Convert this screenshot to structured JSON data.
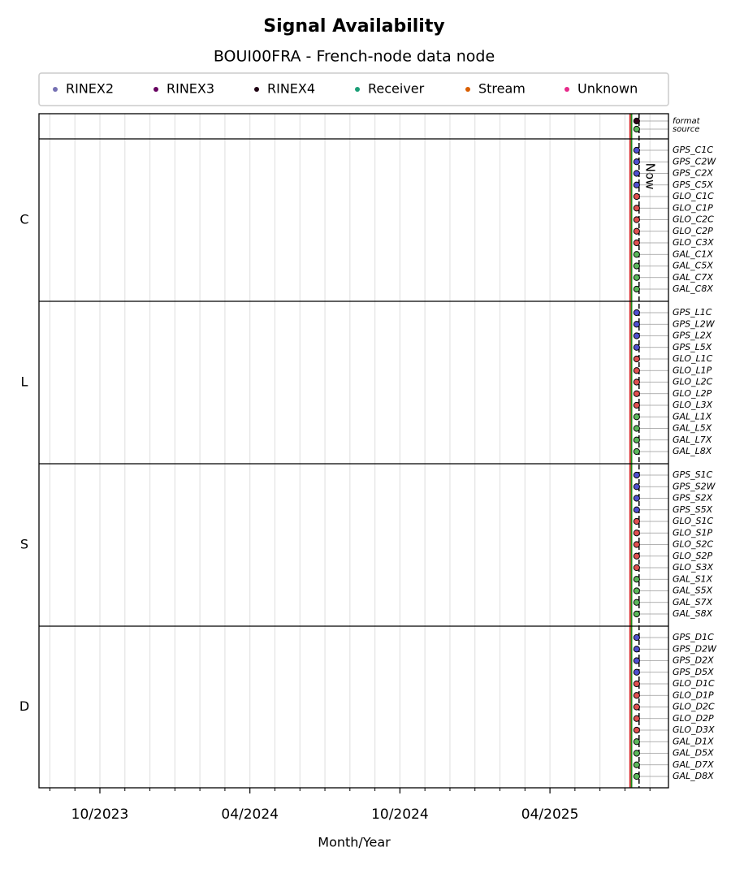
{
  "chart_data": {
    "type": "availability",
    "title": "Signal Availability",
    "subtitle": "BOUI00FRA - French-node data node",
    "xlabel": "Month/Year",
    "legend": [
      {
        "name": "RINEX2",
        "color": "#7570b3"
      },
      {
        "name": "RINEX3",
        "color": "#66005f"
      },
      {
        "name": "RINEX4",
        "color": "#1e0012"
      },
      {
        "name": "Receiver",
        "color": "#1b9e77"
      },
      {
        "name": "Stream",
        "color": "#d95f02"
      },
      {
        "name": "Unknown",
        "color": "#e7298a"
      }
    ],
    "xlim": [
      2023.547,
      2025.645
    ],
    "xticks": [
      {
        "value": 2023.75,
        "label": "10/2023"
      },
      {
        "value": 2024.25,
        "label": "04/2024"
      },
      {
        "value": 2024.75,
        "label": "10/2024"
      },
      {
        "value": 2025.25,
        "label": "04/2025"
      }
    ],
    "xminorticks": [
      2023.5833,
      2023.6667,
      2023.8333,
      2023.9167,
      2024.0,
      2024.0833,
      2024.1667,
      2024.3333,
      2024.4167,
      2024.5,
      2024.5833,
      2024.6667,
      2024.8333,
      2024.9167,
      2025.0,
      2025.0833,
      2025.1667,
      2025.3333,
      2025.4167,
      2025.5,
      2025.5833
    ],
    "grid": true,
    "markers": [
      {
        "x": 2025.517,
        "color": "#d62728"
      },
      {
        "x": 2025.522,
        "color": "#1a8a1a"
      }
    ],
    "now": 2025.547,
    "now_label": "Now",
    "panels": [
      {
        "signals": [
          "format",
          "source"
        ],
        "x": [
          2025.539,
          2025.539
        ],
        "colors": [
          "#330018",
          "#5cb85c"
        ]
      },
      {
        "label": "C",
        "signals": [
          "GPS_C1C",
          "GPS_C2W",
          "GPS_C2X",
          "GPS_C5X",
          "GLO_C1C",
          "GLO_C1P",
          "GLO_C2C",
          "GLO_C2P",
          "GLO_C3X",
          "GAL_C1X",
          "GAL_C5X",
          "GAL_C7X",
          "GAL_C8X"
        ],
        "x": [
          2025.539,
          2025.539,
          2025.539,
          2025.539,
          2025.539,
          2025.539,
          2025.539,
          2025.539,
          2025.539,
          2025.539,
          2025.539,
          2025.539,
          2025.539
        ],
        "colors": [
          "#5050d0",
          "#5050d0",
          "#5050d0",
          "#5050d0",
          "#e05050",
          "#e05050",
          "#e05050",
          "#e05050",
          "#e05050",
          "#5cb85c",
          "#5cb85c",
          "#5cb85c",
          "#5cb85c"
        ]
      },
      {
        "label": "L",
        "signals": [
          "GPS_L1C",
          "GPS_L2W",
          "GPS_L2X",
          "GPS_L5X",
          "GLO_L1C",
          "GLO_L1P",
          "GLO_L2C",
          "GLO_L2P",
          "GLO_L3X",
          "GAL_L1X",
          "GAL_L5X",
          "GAL_L7X",
          "GAL_L8X"
        ],
        "x": [
          2025.539,
          2025.539,
          2025.539,
          2025.539,
          2025.539,
          2025.539,
          2025.539,
          2025.539,
          2025.539,
          2025.539,
          2025.539,
          2025.539,
          2025.539
        ],
        "colors": [
          "#5050d0",
          "#5050d0",
          "#5050d0",
          "#5050d0",
          "#e05050",
          "#e05050",
          "#e05050",
          "#e05050",
          "#e05050",
          "#5cb85c",
          "#5cb85c",
          "#5cb85c",
          "#5cb85c"
        ]
      },
      {
        "label": "S",
        "signals": [
          "GPS_S1C",
          "GPS_S2W",
          "GPS_S2X",
          "GPS_S5X",
          "GLO_S1C",
          "GLO_S1P",
          "GLO_S2C",
          "GLO_S2P",
          "GLO_S3X",
          "GAL_S1X",
          "GAL_S5X",
          "GAL_S7X",
          "GAL_S8X"
        ],
        "x": [
          2025.539,
          2025.539,
          2025.539,
          2025.539,
          2025.539,
          2025.539,
          2025.539,
          2025.539,
          2025.539,
          2025.539,
          2025.539,
          2025.539,
          2025.539
        ],
        "colors": [
          "#5050d0",
          "#5050d0",
          "#5050d0",
          "#5050d0",
          "#e05050",
          "#e05050",
          "#e05050",
          "#e05050",
          "#e05050",
          "#5cb85c",
          "#5cb85c",
          "#5cb85c",
          "#5cb85c"
        ]
      },
      {
        "label": "D",
        "signals": [
          "GPS_D1C",
          "GPS_D2W",
          "GPS_D2X",
          "GPS_D5X",
          "GLO_D1C",
          "GLO_D1P",
          "GLO_D2C",
          "GLO_D2P",
          "GLO_D3X",
          "GAL_D1X",
          "GAL_D5X",
          "GAL_D7X",
          "GAL_D8X"
        ],
        "x": [
          2025.539,
          2025.539,
          2025.539,
          2025.539,
          2025.539,
          2025.539,
          2025.539,
          2025.539,
          2025.539,
          2025.539,
          2025.539,
          2025.539,
          2025.539
        ],
        "colors": [
          "#5050d0",
          "#5050d0",
          "#5050d0",
          "#5050d0",
          "#e05050",
          "#e05050",
          "#e05050",
          "#e05050",
          "#e05050",
          "#5cb85c",
          "#5cb85c",
          "#5cb85c",
          "#5cb85c"
        ]
      }
    ]
  }
}
